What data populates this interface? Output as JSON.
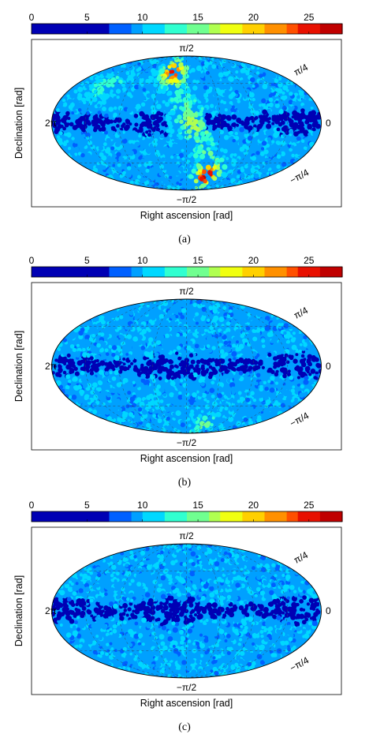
{
  "colorbar": {
    "ticks": [
      "0",
      "5",
      "10",
      "15",
      "20",
      "25"
    ],
    "tick_values": [
      0,
      5,
      10,
      15,
      20,
      25
    ],
    "range": [
      0,
      28
    ],
    "colormap": [
      "#00008f",
      "#0000b0",
      "#0000d0",
      "#0020ff",
      "#0060ff",
      "#00a0ff",
      "#00d8ff",
      "#30ffd0",
      "#70ff90",
      "#b0ff50",
      "#f0ff10",
      "#ffd000",
      "#ff9000",
      "#ff5000",
      "#e81000",
      "#c00000"
    ],
    "low_cutoff": 7.5
  },
  "tick_labels": {
    "top": "π/2",
    "upper_right": "π/4",
    "left": "2π",
    "right": "0",
    "lower_right": "−π/4",
    "bottom": "−π/2"
  },
  "axis_labels": {
    "x": "Right ascension [rad]",
    "y": "Declination [rad]"
  },
  "chart_data": [
    {
      "type": "heatmap",
      "projection": "mollweide",
      "caption": "(a)",
      "xlabel": "Right ascension [rad]",
      "ylabel": "Declination [rad]",
      "colorbar_range": [
        0,
        28
      ],
      "colorbar_ticks": [
        0,
        5,
        10,
        15,
        20,
        25
      ],
      "background_value": 10,
      "band_value": 3,
      "features": [
        {
          "ra": 3.6,
          "dec": 1.05,
          "value": 22
        },
        {
          "ra": 2.4,
          "dec": -1.1,
          "value": 24
        },
        {
          "ra": 3.0,
          "dec": 0.0,
          "value": 13
        },
        {
          "ra": 5.4,
          "dec": 0.75,
          "value": 14
        }
      ]
    },
    {
      "type": "heatmap",
      "projection": "mollweide",
      "caption": "(b)",
      "xlabel": "Right ascension [rad]",
      "ylabel": "Declination [rad]",
      "colorbar_range": [
        0,
        28
      ],
      "colorbar_ticks": [
        0,
        5,
        10,
        15,
        20,
        25
      ],
      "background_value": 10,
      "band_value": 3,
      "features": [
        {
          "ra": 2.3,
          "dec": -1.25,
          "value": 16
        }
      ]
    },
    {
      "type": "heatmap",
      "projection": "mollweide",
      "caption": "(c)",
      "xlabel": "Right ascension [rad]",
      "ylabel": "Declination [rad]",
      "colorbar_range": [
        0,
        28
      ],
      "colorbar_ticks": [
        0,
        5,
        10,
        15,
        20,
        25
      ],
      "background_value": 10,
      "band_value": 3,
      "features": []
    }
  ]
}
